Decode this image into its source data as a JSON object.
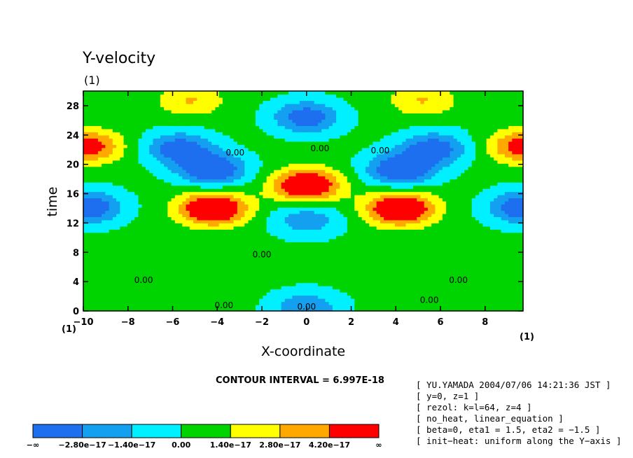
{
  "chart_data": {
    "type": "heatmap",
    "title": "Y-velocity",
    "subtitle": "(1)",
    "xlabel": "X-coordinate",
    "ylabel": "time",
    "x_unit_label": "(1)",
    "origin_unit_label": "(1)",
    "xlim": [
      -10,
      9.7
    ],
    "ylim": [
      0,
      30
    ],
    "x_ticks": [
      -10,
      -8,
      -6,
      -4,
      -2,
      0,
      2,
      4,
      6,
      8
    ],
    "y_ticks": [
      0,
      4,
      8,
      12,
      16,
      20,
      24,
      28
    ],
    "contour_interval_text": "CONTOUR INTERVAL = 6.997E-18",
    "contour_labels": [
      {
        "text": "0.00",
        "x": -7.3,
        "y": 3.8
      },
      {
        "text": "0.00",
        "x": -3.7,
        "y": 0.4
      },
      {
        "text": "0.00",
        "x": -2.0,
        "y": 7.3
      },
      {
        "text": "0.00",
        "x": -3.2,
        "y": 21.2
      },
      {
        "text": "0.00",
        "x": 0.6,
        "y": 21.8
      },
      {
        "text": "0.00",
        "x": 3.3,
        "y": 21.5
      },
      {
        "text": "0.00",
        "x": 6.8,
        "y": 3.8
      },
      {
        "text": "0.00",
        "x": 5.5,
        "y": 1.1
      },
      {
        "text": "0.00",
        "x": 0.0,
        "y": 0.2
      }
    ],
    "features": [
      {
        "kind": "positive_max",
        "x": -4.2,
        "y": 14.0,
        "level": 5.0
      },
      {
        "kind": "positive_max",
        "x": 4.2,
        "y": 14.0,
        "level": 5.0
      },
      {
        "kind": "positive_max",
        "x": 0.0,
        "y": 17.2,
        "level": 4.7
      },
      {
        "kind": "negative_min",
        "x": -4.2,
        "y": 19.3,
        "level": -3.6
      },
      {
        "kind": "negative_min",
        "x": 4.2,
        "y": 19.3,
        "level": -3.6
      },
      {
        "kind": "negative_min",
        "x": -5.7,
        "y": 22.2,
        "level": -3.0
      },
      {
        "kind": "negative_min",
        "x": 5.7,
        "y": 22.2,
        "level": -3.0
      },
      {
        "kind": "negative_min",
        "x": 0.0,
        "y": 26.5,
        "level": -3.0
      },
      {
        "kind": "negative_min",
        "x": -9.8,
        "y": 14.2,
        "level": -3.4
      },
      {
        "kind": "negative_min",
        "x": 9.7,
        "y": 14.2,
        "level": -3.4
      },
      {
        "kind": "positive_max",
        "x": -9.8,
        "y": 22.5,
        "level": 3.5
      },
      {
        "kind": "positive_max",
        "x": 9.7,
        "y": 22.5,
        "level": 3.5
      },
      {
        "kind": "positive_max",
        "x": -5.2,
        "y": 28.8,
        "level": 1.8
      },
      {
        "kind": "positive_max",
        "x": 5.2,
        "y": 28.8,
        "level": 1.8
      },
      {
        "kind": "negative_min",
        "x": 0.0,
        "y": 12.5,
        "level": -2.0
      },
      {
        "kind": "negative_min",
        "x": 0.0,
        "y": 0.5,
        "level": -2.2
      }
    ],
    "levels": [
      -2.8e-17,
      -1.4e-17,
      0.0,
      1.4e-17,
      2.8e-17,
      4.2e-17
    ]
  },
  "colorbar": {
    "colors": [
      "#1e6ef0",
      "#14a0f0",
      "#00f0ff",
      "#00d400",
      "#ffff00",
      "#ffa800",
      "#ff0000"
    ],
    "tick_labels": [
      "−∞",
      "−2.80e−17",
      "−1.40e−17",
      "0.00",
      "1.40e−17",
      "2.80e−17",
      "4.20e−17",
      "∞"
    ]
  },
  "info_lines": [
    "[ YU.YAMADA 2004/07/06 14:21:36 JST ]",
    "[ y=0, z=1 ]",
    "[ rezol: k=l=64, z=4 ]",
    "[ no_heat, linear_equation ]",
    "[ beta=0, eta1 = 1.5, eta2 = −1.5 ]",
    "[ init−heat: uniform along the Y−axis ]"
  ]
}
